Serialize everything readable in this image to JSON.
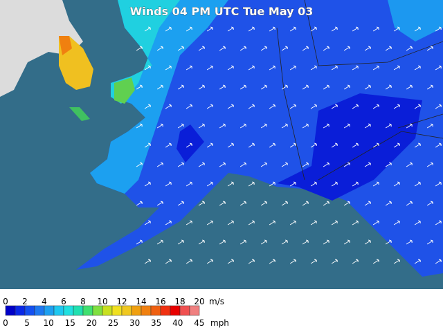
{
  "title": "Winds 04 PM UTC Tue May 03",
  "legend": {
    "ms_labels": [
      0,
      2,
      4,
      6,
      8,
      10,
      12,
      14,
      16,
      18,
      20
    ],
    "ms_unit": "m/s",
    "mph_labels": [
      0,
      5,
      10,
      15,
      20,
      25,
      30,
      35,
      40,
      45
    ],
    "mph_unit": "mph"
  }
}
